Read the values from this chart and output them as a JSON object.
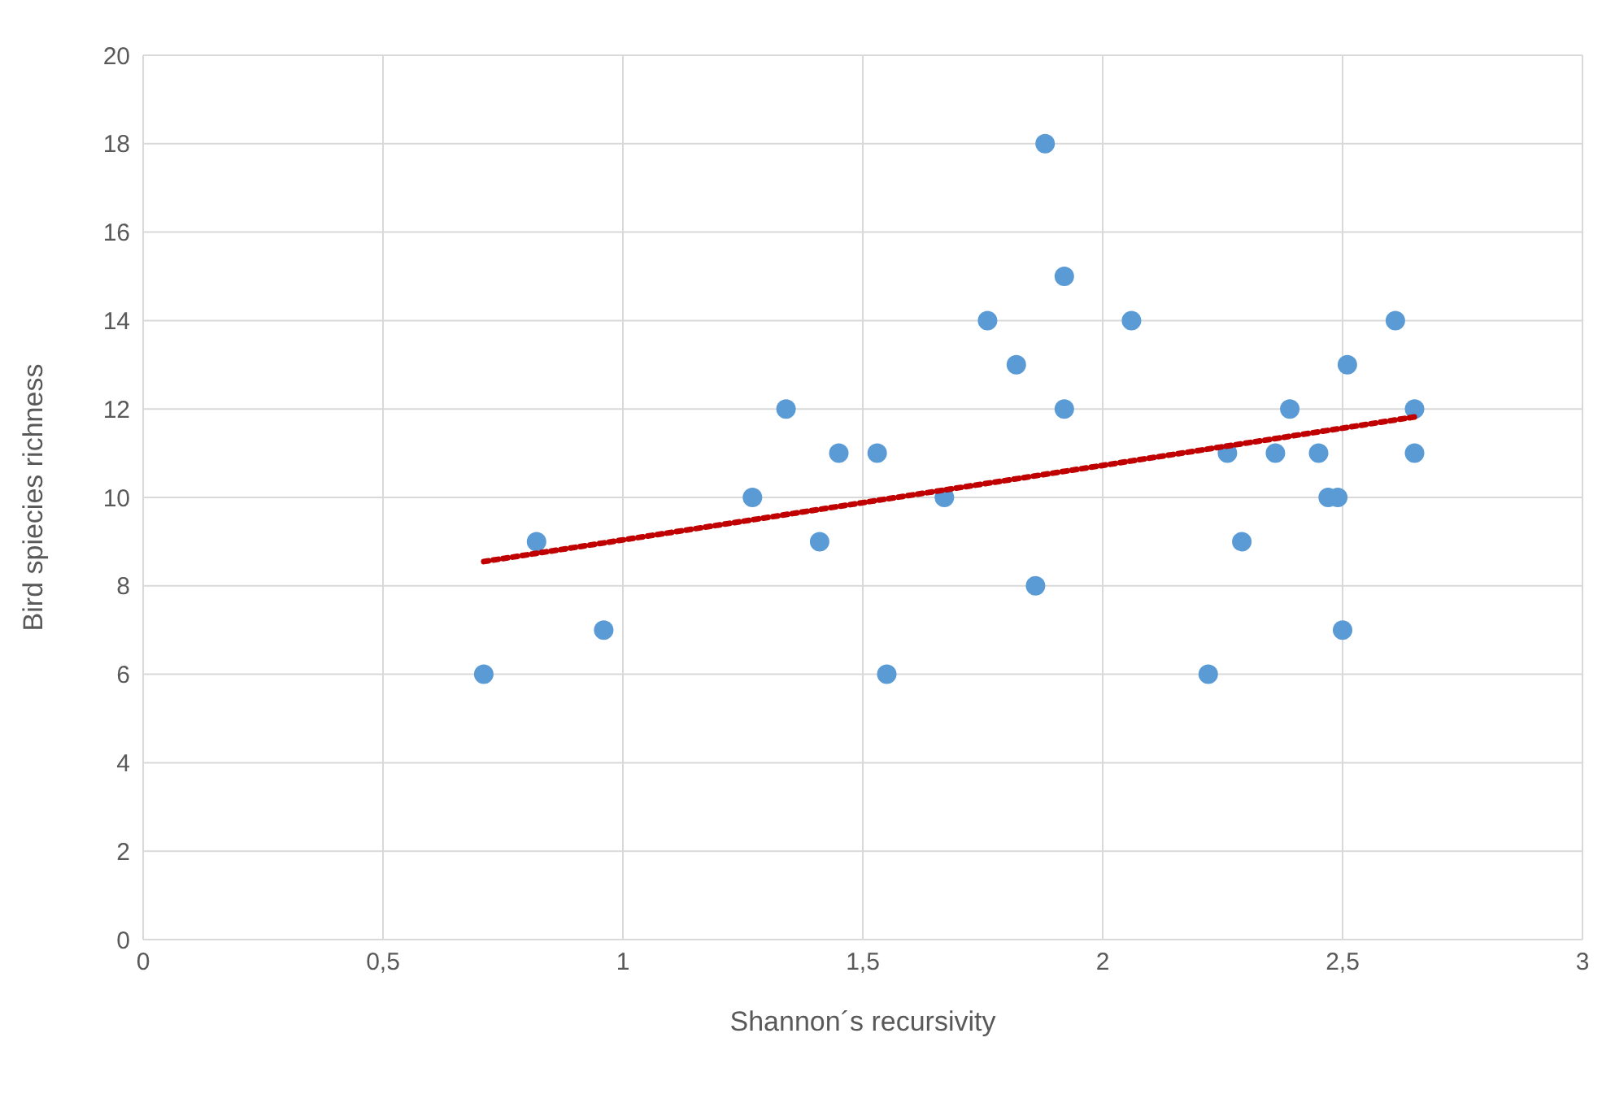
{
  "chart_data": {
    "type": "scatter",
    "xlabel": "Shannon´s recursivity",
    "ylabel": "Bird spiecies richness",
    "xlim": [
      0,
      3
    ],
    "xticks": [
      0,
      {
        "value": 0.5,
        "label": "0,5"
      },
      1,
      {
        "value": 1.5,
        "label": "1,5"
      },
      2,
      {
        "value": 2.5,
        "label": "2,5"
      },
      3
    ],
    "ylim": [
      0,
      20
    ],
    "yticks": [
      0,
      2,
      4,
      6,
      8,
      10,
      12,
      14,
      16,
      18,
      20
    ],
    "grid": true,
    "marker": "circle",
    "series": [
      {
        "color": "#5b9bd5",
        "x": [
          0.71,
          0.82,
          0.96,
          1.27,
          1.34,
          1.41,
          1.45,
          1.53,
          1.55,
          1.67,
          1.76,
          1.82,
          1.86,
          1.88,
          1.92,
          1.92,
          2.06,
          2.22,
          2.26,
          2.29,
          2.36,
          2.39,
          2.45,
          2.47,
          2.49,
          2.5,
          2.51,
          2.61,
          2.65,
          2.65
        ],
        "values": [
          6,
          9,
          7,
          10,
          12,
          9,
          11,
          11,
          6,
          10,
          14,
          13,
          8,
          18,
          15,
          12,
          14,
          6,
          11,
          9,
          11,
          12,
          11,
          10,
          10,
          7,
          13,
          14,
          12,
          11
        ]
      },
      {
        "type": "line",
        "color": "#c00000",
        "marker": "none",
        "line_style": "dotted",
        "x": [
          0.71,
          2.65
        ],
        "values": [
          8.55,
          11.82
        ]
      }
    ]
  }
}
